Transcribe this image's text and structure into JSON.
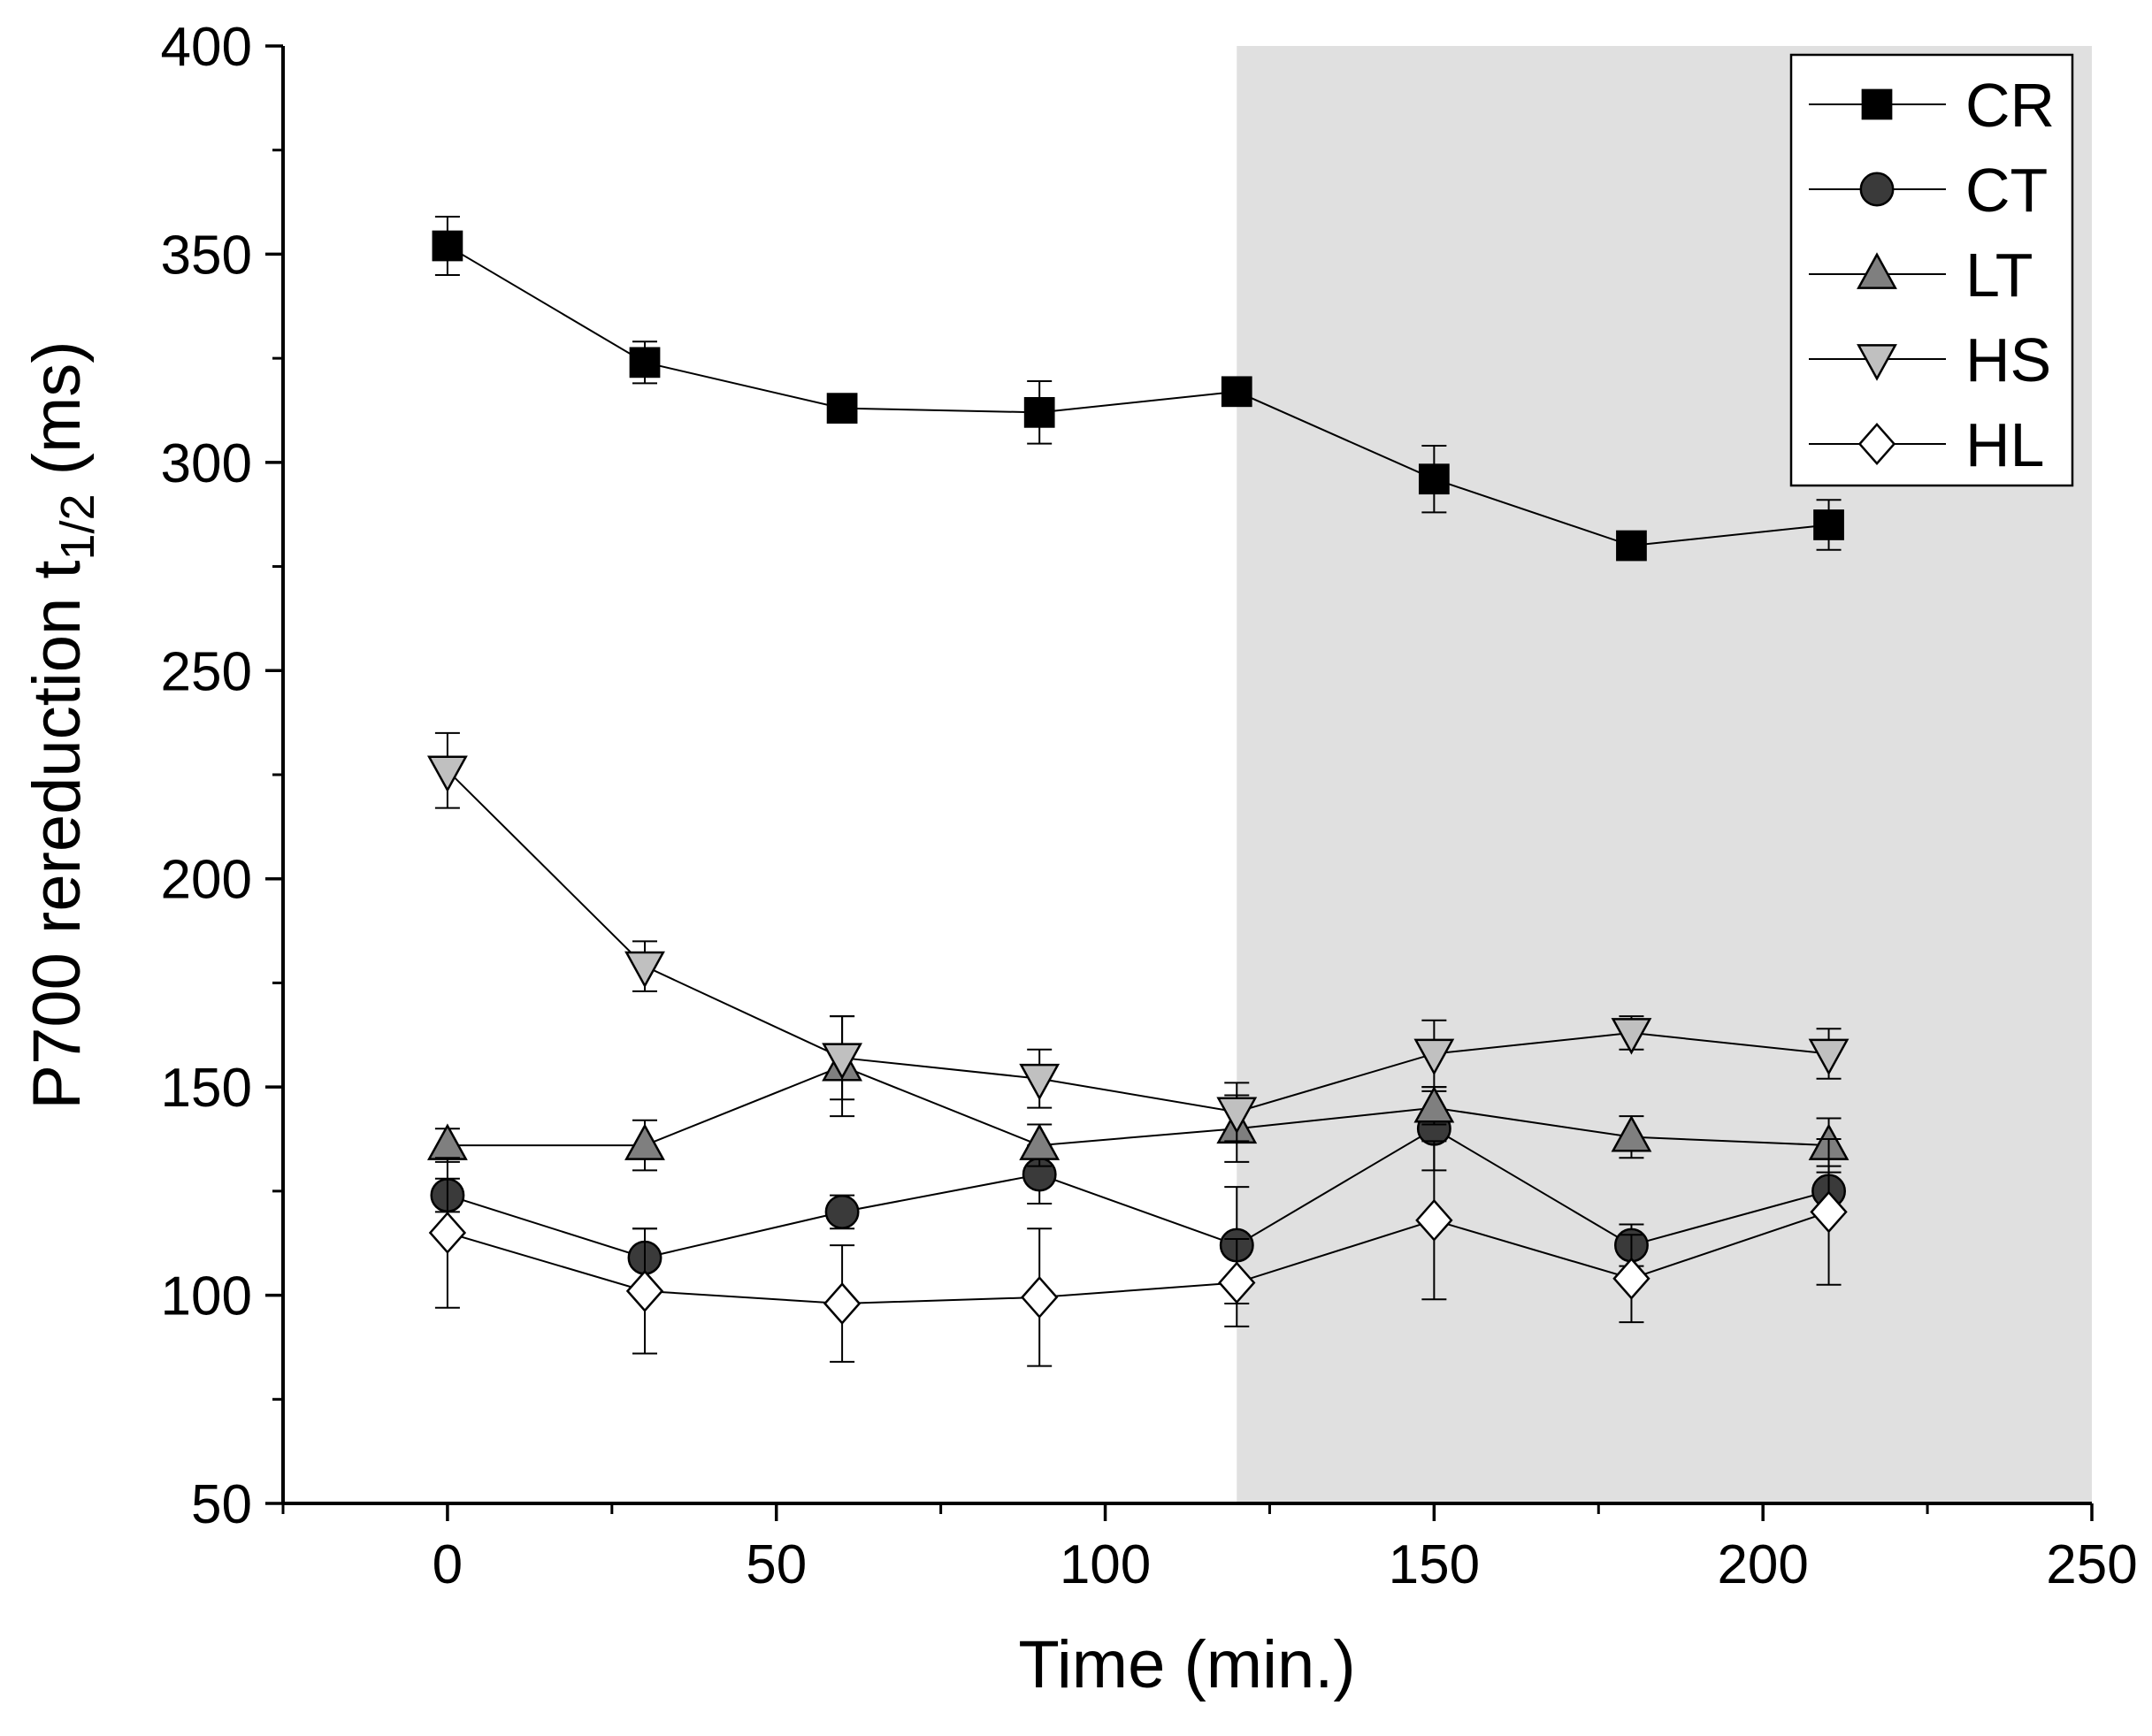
{
  "chart_data": {
    "type": "line",
    "title": "",
    "xlabel": "Time (min.)",
    "ylabel_main": "P700 rereduction t",
    "ylabel_sub": "1/2",
    "ylabel_unit": " (ms)",
    "xlim": [
      -25,
      250
    ],
    "ylim": [
      50,
      400
    ],
    "x_ticks": [
      0,
      50,
      100,
      150,
      200,
      250
    ],
    "x_minor_ticks": [
      -25,
      25,
      75,
      125,
      175,
      225
    ],
    "y_ticks": [
      50,
      100,
      150,
      200,
      250,
      300,
      350,
      400
    ],
    "y_minor_ticks": [
      75,
      125,
      175,
      225,
      275,
      325,
      375
    ],
    "x_tick_labels": [
      "0",
      "50",
      "100",
      "150",
      "200",
      "250"
    ],
    "y_tick_labels": [
      "50",
      "100",
      "150",
      "200",
      "250",
      "300",
      "350",
      "400"
    ],
    "shaded_region": {
      "x_from": 120,
      "x_to": 250,
      "color": "#e0e0e0"
    },
    "grid": false,
    "legend_position": "top-right",
    "x": [
      0,
      30,
      60,
      90,
      120,
      150,
      180,
      210
    ],
    "series": [
      {
        "name": "CR",
        "marker": "square",
        "fill": "#000000",
        "values": [
          352,
          324,
          313,
          312,
          317,
          296,
          280,
          285
        ],
        "errors": [
          7,
          5,
          3,
          7.5,
          3,
          8,
          3,
          6
        ]
      },
      {
        "name": "CT",
        "marker": "circle",
        "fill": "#3a3a3a",
        "values": [
          124,
          109,
          120,
          129,
          112,
          140,
          112,
          125
        ],
        "errors": [
          4,
          7,
          4,
          7,
          14,
          10,
          5,
          6
        ]
      },
      {
        "name": "LT",
        "marker": "triangle-up",
        "fill": "#7f7f7f",
        "values": [
          136,
          136,
          155,
          136,
          140,
          145,
          138,
          136
        ],
        "errors": [
          4,
          6,
          12,
          5,
          8,
          4,
          5,
          6.5
        ]
      },
      {
        "name": "HS",
        "marker": "triangle-down",
        "fill": "#c0c0c0",
        "values": [
          226,
          179,
          157,
          152,
          144,
          158,
          163,
          158
        ],
        "errors": [
          9,
          6,
          10,
          7,
          7,
          8,
          4,
          6
        ]
      },
      {
        "name": "HL",
        "marker": "diamond",
        "fill": "#ffffff",
        "values": [
          115,
          101,
          98,
          99.5,
          103,
          118,
          104,
          120
        ],
        "errors": [
          18,
          15,
          14,
          16.5,
          10.5,
          19,
          10.5,
          17.5
        ]
      }
    ]
  }
}
